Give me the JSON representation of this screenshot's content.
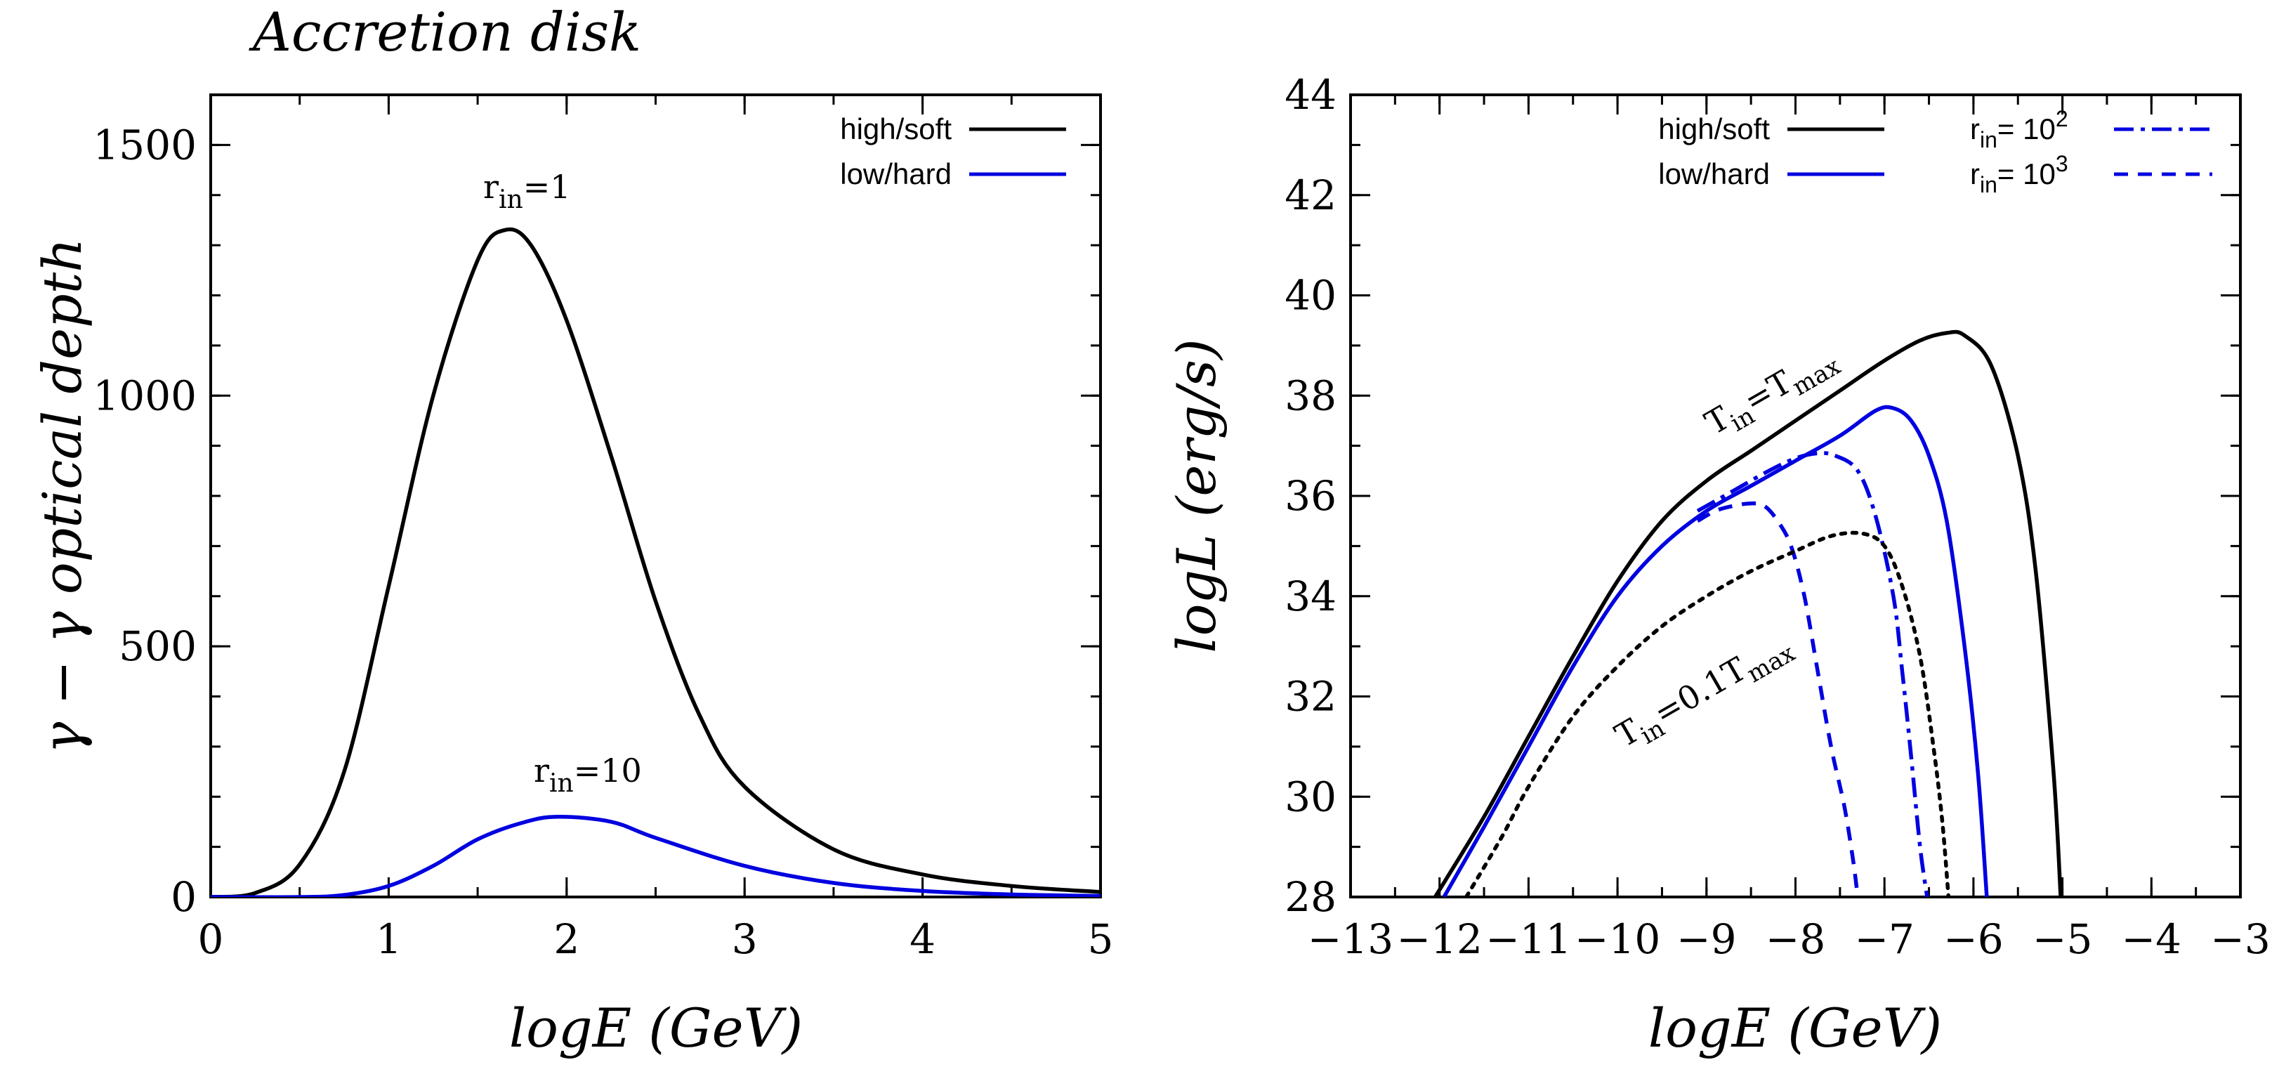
{
  "title": "Accretion disk",
  "colors": {
    "high_soft": "#000000",
    "low_hard": "#0000e0",
    "axis": "#000000"
  },
  "chart_data": [
    {
      "type": "line",
      "xlabel": "logE (GeV)",
      "ylabel": "γ − γ optical depth",
      "xlim": [
        0,
        5
      ],
      "ylim": [
        0,
        1600
      ],
      "xticks": [
        "0",
        "1",
        "2",
        "3",
        "4",
        "5"
      ],
      "yticks": [
        "0",
        "500",
        "1000",
        "1500"
      ],
      "legend": {
        "placement": "top-right",
        "entries": [
          "high/soft",
          "low/hard"
        ]
      },
      "annotations": {
        "peak_high": "r",
        "peak_high_sub": "in",
        "peak_high_tail": "=1",
        "peak_low": "r",
        "peak_low_sub": "in",
        "peak_low_tail": "=10"
      },
      "series": [
        {
          "name": "high/soft",
          "style": "solid",
          "color": "#000000",
          "x": [
            0,
            0.25,
            0.5,
            0.75,
            1,
            1.25,
            1.5,
            1.65,
            1.8,
            2,
            2.25,
            2.5,
            2.75,
            3,
            3.5,
            4,
            4.5,
            5
          ],
          "y": [
            0,
            8,
            65,
            250,
            620,
            1000,
            1270,
            1330,
            1300,
            1150,
            880,
            590,
            360,
            220,
            95,
            45,
            22,
            10
          ]
        },
        {
          "name": "low/hard",
          "style": "solid",
          "color": "#0000e0",
          "x": [
            0,
            0.5,
            0.75,
            1,
            1.25,
            1.5,
            1.75,
            1.95,
            2.25,
            2.5,
            3,
            3.5,
            4,
            4.5,
            5
          ],
          "y": [
            0,
            0,
            4,
            22,
            62,
            115,
            148,
            160,
            150,
            118,
            62,
            28,
            12,
            5,
            2
          ]
        }
      ]
    },
    {
      "type": "line",
      "xlabel": "logE (GeV)",
      "ylabel": "logL (erg/s)",
      "xlim": [
        -13,
        -3
      ],
      "ylim": [
        28,
        44
      ],
      "xticks": [
        "−13",
        "−12",
        "−11",
        "−10",
        "−9",
        "−8",
        "−7",
        "−6",
        "−5",
        "−4",
        "−3"
      ],
      "yticks": [
        "28",
        "30",
        "32",
        "34",
        "36",
        "38",
        "40",
        "42",
        "44"
      ],
      "legend": {
        "placement": "top",
        "entries": [
          "high/soft",
          "low/hard"
        ],
        "r_entries": [
          {
            "prefix": "r",
            "sub": "in",
            "mid": "= 10",
            "sup": "2"
          },
          {
            "prefix": "r",
            "sub": "in",
            "mid": "= 10",
            "sup": "3"
          }
        ]
      },
      "annotations": {
        "tmax": {
          "a": "T",
          "a_sub": "in",
          "b": "=T",
          "b_sub": "max"
        },
        "t01": {
          "a": "T",
          "a_sub": "in",
          "b": "=0.1T",
          "b_sub": "max"
        }
      },
      "series": [
        {
          "name": "high/soft",
          "style": "solid",
          "color": "#000000",
          "x": [
            -12.05,
            -11.5,
            -11,
            -10.5,
            -10,
            -9.5,
            -9,
            -8.5,
            -8,
            -7.5,
            -7,
            -6.6,
            -6.3,
            -6.1,
            -5.8,
            -5.5,
            -5.3,
            -5.1,
            -5.02
          ],
          "y": [
            28,
            29.6,
            31.2,
            32.8,
            34.3,
            35.5,
            36.3,
            36.9,
            37.5,
            38.1,
            38.7,
            39.1,
            39.25,
            39.2,
            38.6,
            36.8,
            34.5,
            30.5,
            28
          ]
        },
        {
          "name": "low/hard",
          "style": "solid",
          "color": "#0000e0",
          "x": [
            -11.95,
            -11.5,
            -11,
            -10.5,
            -10,
            -9.5,
            -9,
            -8.5,
            -8,
            -7.5,
            -7.1,
            -6.9,
            -6.7,
            -6.5,
            -6.3,
            -6.1,
            -5.95,
            -5.85
          ],
          "y": [
            28,
            29.4,
            31.0,
            32.6,
            34.0,
            35.0,
            35.7,
            36.2,
            36.7,
            37.2,
            37.7,
            37.75,
            37.5,
            36.8,
            35.5,
            33.0,
            30.5,
            28
          ]
        },
        {
          "name": "",
          "style": "dashdot",
          "color": "#0000e0",
          "x": [
            -9.1,
            -8.7,
            -8.3,
            -8,
            -7.75,
            -7.55,
            -7.3,
            -7.1,
            -6.9,
            -6.8,
            -6.7,
            -6.6,
            -6.52
          ],
          "y": [
            35.7,
            36.1,
            36.5,
            36.75,
            36.85,
            36.8,
            36.5,
            35.6,
            34.0,
            32.5,
            30.8,
            29.0,
            28
          ]
        },
        {
          "name": "",
          "style": "dashed",
          "color": "#0000e0",
          "x": [
            -9.1,
            -8.9,
            -8.7,
            -8.5,
            -8.35,
            -8.2,
            -8.05,
            -7.9,
            -7.75,
            -7.6,
            -7.45,
            -7.35,
            -7.3
          ],
          "y": [
            35.5,
            35.7,
            35.8,
            35.85,
            35.8,
            35.5,
            35.0,
            34.0,
            32.5,
            31.0,
            29.8,
            28.7,
            28
          ]
        },
        {
          "name": "",
          "style": "dotted",
          "color": "#000000",
          "x": [
            -11.7,
            -11.3,
            -11,
            -10.5,
            -10,
            -9.5,
            -9,
            -8.5,
            -8,
            -7.6,
            -7.25,
            -7,
            -6.8,
            -6.6,
            -6.45,
            -6.35,
            -6.28
          ],
          "y": [
            28,
            29.2,
            30.2,
            31.6,
            32.6,
            33.4,
            34.0,
            34.5,
            34.9,
            35.2,
            35.25,
            35.0,
            34.2,
            32.8,
            31.0,
            29.5,
            28
          ]
        }
      ]
    }
  ]
}
